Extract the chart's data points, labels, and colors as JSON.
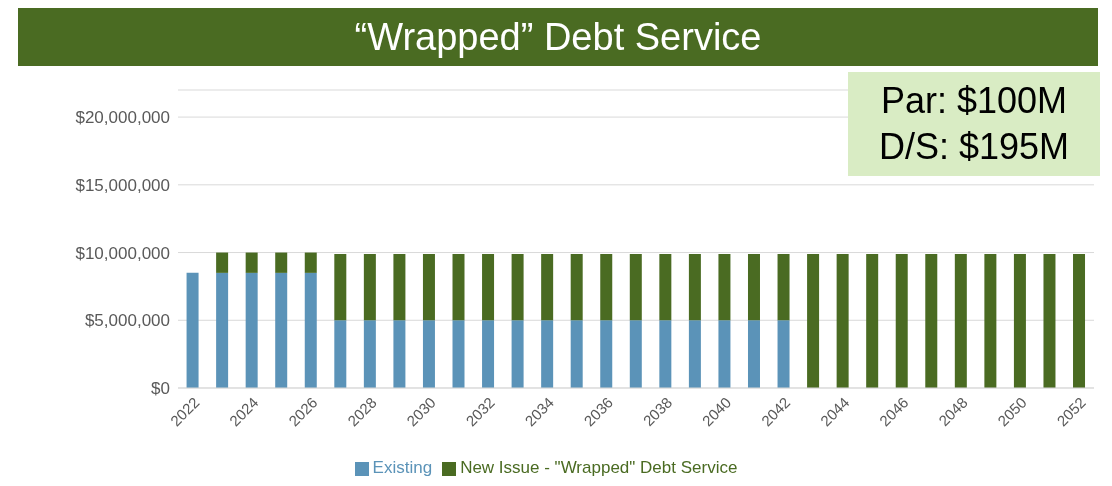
{
  "chart_data": {
    "type": "bar",
    "title": "“Wrapped” Debt Service",
    "stacked": true,
    "categories": [
      "2022",
      null,
      "2024",
      null,
      "2026",
      null,
      "2028",
      null,
      "2030",
      null,
      "2032",
      null,
      "2034",
      null,
      "2036",
      null,
      "2038",
      null,
      "2040",
      null,
      "2042",
      null,
      "2044",
      null,
      "2046",
      null,
      "2048",
      null,
      "2050",
      null,
      "2052"
    ],
    "series": [
      {
        "name": "Existing",
        "color": "#5b93b8",
        "values": [
          8500000,
          8500000,
          8500000,
          8500000,
          8500000,
          5000000,
          5000000,
          5000000,
          5000000,
          5000000,
          5000000,
          5000000,
          5000000,
          5000000,
          5000000,
          5000000,
          5000000,
          5000000,
          5000000,
          5000000,
          5000000,
          null,
          null,
          null,
          null,
          null,
          null,
          null,
          null,
          null,
          null
        ]
      },
      {
        "name": "New Issue - \"Wrapped\" Debt Service",
        "color": "#4a6b22",
        "values": [
          null,
          1500000,
          1500000,
          1500000,
          1500000,
          4900000,
          4900000,
          4900000,
          4900000,
          4900000,
          4900000,
          4900000,
          4900000,
          4900000,
          4900000,
          4900000,
          4900000,
          4900000,
          4900000,
          4900000,
          4900000,
          9900000,
          9900000,
          9900000,
          9900000,
          9900000,
          9900000,
          9900000,
          9900000,
          9900000,
          9900000
        ]
      }
    ],
    "ylim": [
      0,
      22000000
    ],
    "yticks": [
      {
        "value": 0,
        "label": "$0"
      },
      {
        "value": 5000000,
        "label": "$5,000,000"
      },
      {
        "value": 10000000,
        "label": "$10,000,000"
      },
      {
        "value": 15000000,
        "label": "$15,000,000"
      },
      {
        "value": 20000000,
        "label": "$20,000,000"
      }
    ],
    "grid": "y",
    "legend": "bottom",
    "annotations": [
      "Par: $100M",
      "D/S: $195M"
    ]
  }
}
